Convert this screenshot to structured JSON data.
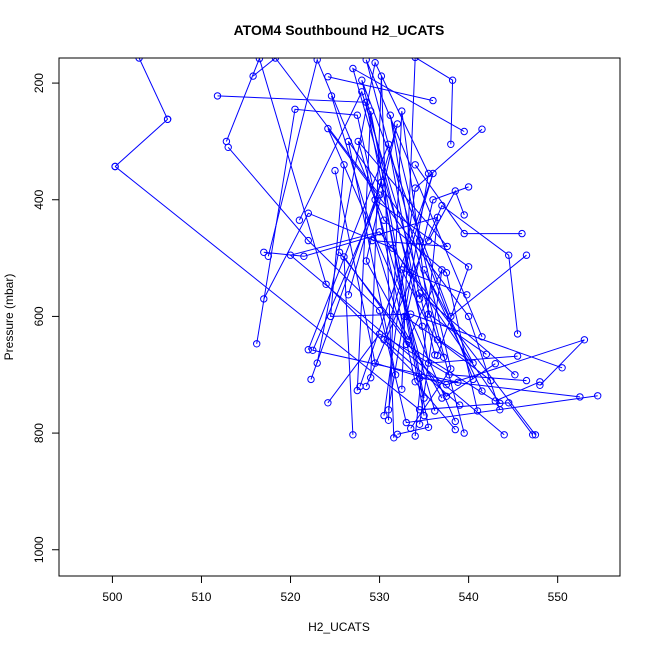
{
  "chart_data": {
    "type": "line",
    "title": "ATOM4 Southbound H2_UCATS",
    "xlabel": "H2_UCATS",
    "ylabel": "Pressure (mbar)",
    "xlim": [
      494,
      557
    ],
    "ylim": [
      1045,
      157
    ],
    "y_inverted": true,
    "xticks": [
      500,
      510,
      520,
      530,
      540,
      550
    ],
    "yticks": [
      200,
      400,
      600,
      800,
      1000
    ],
    "grid": false,
    "legend": "none",
    "marker": "open-circle",
    "color": "#0000ff",
    "series": [
      {
        "x": [
          500.3,
          506.2
        ],
        "y": [
          343,
          262
        ]
      },
      {
        "x": [
          500.3,
          534.5,
          544.5,
          547.2
        ],
        "y": [
          343,
          760,
          748,
          803
        ]
      },
      {
        "x": [
          506.2,
          503.0
        ],
        "y": [
          262,
          157
        ]
      },
      {
        "x": [
          512.8,
          516.5,
          524.0,
          534.5,
          552.5
        ],
        "y": [
          300,
          158,
          545,
          706,
          738
        ]
      },
      {
        "x": [
          513.0,
          522.0,
          530.0,
          533.0,
          554.5
        ],
        "y": [
          310,
          470,
          590,
          782,
          736
        ]
      },
      {
        "x": [
          511.8,
          528.5,
          535.5,
          532.0
        ],
        "y": [
          222,
          233,
          790,
          802
        ]
      },
      {
        "x": [
          515.8,
          518.3,
          530.0,
          522.5,
          538.8
        ],
        "y": [
          188,
          157,
          392,
          658,
          713
        ]
      },
      {
        "x": [
          517.0,
          521.5,
          536.5,
          534.0
        ],
        "y": [
          490,
          497,
          430,
          805
        ]
      },
      {
        "x": [
          517.5,
          523.0,
          530.5,
          537.5,
          541.0
        ],
        "y": [
          497,
          160,
          435,
          525,
          762
        ]
      },
      {
        "x": [
          517.0,
          522.0,
          531.5,
          543.5
        ],
        "y": [
          570,
          423,
          483,
          749
        ]
      },
      {
        "x": [
          516.2,
          520.5,
          527.5,
          534.0,
          538.5
        ],
        "y": [
          647,
          245,
          255,
          712,
          794
        ]
      },
      {
        "x": [
          522.0,
          531.0,
          535.5,
          545.5
        ],
        "y": [
          657,
          305,
          680,
          668
        ]
      },
      {
        "x": [
          522.3,
          530.2,
          535.0
        ],
        "y": [
          708,
          370,
          770
        ]
      },
      {
        "x": [
          524.2,
          530.0,
          537.8,
          546.5
        ],
        "y": [
          748,
          630,
          700,
          710
        ]
      },
      {
        "x": [
          524.2,
          536.0
        ],
        "y": [
          189,
          230
        ]
      },
      {
        "x": [
          524.6,
          533.0,
          543.0,
          548.0
        ],
        "y": [
          222,
          648,
          745,
          712
        ]
      },
      {
        "x": [
          525.0,
          529.5,
          537.5,
          553.0,
          548.0
        ],
        "y": [
          350,
          680,
          717,
          640,
          718
        ]
      },
      {
        "x": [
          526.0,
          524.5,
          533.5,
          550.5
        ],
        "y": [
          340,
          600,
          596,
          688
        ]
      },
      {
        "x": [
          527.0,
          526.0,
          537.5,
          543.0
        ],
        "y": [
          803,
          498,
          737,
          681
        ]
      },
      {
        "x": [
          527.5,
          529.0,
          535.0
        ],
        "y": [
          727,
          248,
          740
        ]
      },
      {
        "x": [
          528.5,
          537.0,
          544.5,
          545.5
        ],
        "y": [
          720,
          410,
          495,
          630
        ]
      },
      {
        "x": [
          529.0,
          530.2,
          531.6
        ],
        "y": [
          705,
          188,
          808
        ]
      },
      {
        "x": [
          529.5,
          540.0,
          536.5
        ],
        "y": [
          400,
          515,
          667
        ]
      },
      {
        "x": [
          530.5,
          534.0,
          541.5
        ],
        "y": [
          770,
          380,
          279
        ]
      },
      {
        "x": [
          531.0,
          532.5,
          535.5,
          542.0
        ],
        "y": [
          778,
          248,
          596,
          665
        ]
      },
      {
        "x": [
          532.5,
          534.0,
          538.2,
          538.0
        ],
        "y": [
          725,
          156,
          195,
          305
        ]
      },
      {
        "x": [
          533.0,
          536.0,
          540.0
        ],
        "y": [
          600,
          400,
          378
        ]
      },
      {
        "x": [
          533.5,
          527.0,
          539.5
        ],
        "y": [
          525,
          175,
          283
        ]
      },
      {
        "x": [
          534.0,
          539.5,
          546.0
        ],
        "y": [
          340,
          458,
          458
        ]
      },
      {
        "x": [
          534.8,
          528.0,
          538.0,
          546.5
        ],
        "y": [
          617,
          195,
          600,
          495
        ]
      },
      {
        "x": [
          535.5,
          538.5,
          539.5
        ],
        "y": [
          470,
          385,
          426
        ]
      },
      {
        "x": [
          536.2,
          534.5,
          545.2
        ],
        "y": [
          666,
          560,
          700
        ]
      },
      {
        "x": [
          537.2,
          532.5,
          539.8
        ],
        "y": [
          670,
          520,
          563
        ]
      },
      {
        "x": [
          538.5,
          524.2,
          540.0,
          543.5
        ],
        "y": [
          780,
          278,
          600,
          760
        ]
      },
      {
        "x": [
          539.5,
          528.5,
          541.5
        ],
        "y": [
          800,
          160,
          635
        ]
      },
      {
        "x": [
          544.0,
          520.0,
          530.0,
          547.5
        ],
        "y": [
          803,
          495,
          455,
          803
        ]
      },
      {
        "x": [
          526.5,
          532.0,
          528.5,
          537.0
        ],
        "y": [
          563,
          270,
          505,
          740
        ]
      },
      {
        "x": [
          523.0,
          529.5,
          535.5,
          531.0
        ],
        "y": [
          680,
          165,
          355,
          760
        ]
      },
      {
        "x": [
          525.5,
          533.2,
          537.0,
          534.5
        ],
        "y": [
          490,
          640,
          520,
          785
        ]
      },
      {
        "x": [
          521.0,
          528.0,
          536.5,
          542.5
        ],
        "y": [
          435,
          215,
          640,
          710
        ]
      },
      {
        "x": [
          527.8,
          536.0,
          530.5,
          539.0
        ],
        "y": [
          720,
          355,
          640,
          752
        ]
      },
      {
        "x": [
          531.8,
          526.5,
          534.5,
          540.5
        ],
        "y": [
          700,
          300,
          470,
          708
        ]
      },
      {
        "x": [
          529.2,
          537.6,
          527.6,
          536.2
        ],
        "y": [
          470,
          480,
          300,
          762
        ]
      },
      {
        "x": [
          534.5,
          531.2,
          538.0,
          533.5
        ],
        "y": [
          570,
          255,
          690,
          792
        ]
      },
      {
        "x": [
          532.8,
          540.5,
          535.0,
          541.5
        ],
        "y": [
          600,
          680,
          520,
          728
        ]
      }
    ]
  }
}
